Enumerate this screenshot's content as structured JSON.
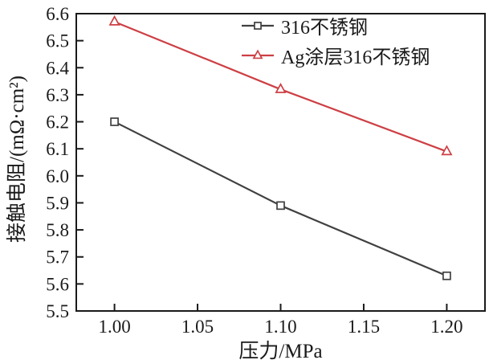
{
  "chart_data": {
    "type": "line",
    "title": "",
    "xlabel": "压力/MPa",
    "ylabel": "接触电阻/(mΩ·cm²)",
    "x": [
      1.0,
      1.1,
      1.2
    ],
    "series": [
      {
        "name": "316不锈钢",
        "marker": "square",
        "color": "#404040",
        "values": [
          6.2,
          5.89,
          5.63
        ]
      },
      {
        "name": "Ag涂层316不锈钢",
        "marker": "triangle",
        "color": "#cd3f44",
        "values": [
          6.57,
          6.32,
          6.09
        ]
      }
    ],
    "xticks": [
      "1.00",
      "1.05",
      "1.10",
      "1.15",
      "1.20"
    ],
    "yticks": [
      "5.5",
      "5.6",
      "5.7",
      "5.8",
      "5.9",
      "6.0",
      "6.1",
      "6.2",
      "6.3",
      "6.4",
      "6.5",
      "6.6"
    ],
    "xlim": [
      0.977,
      1.223
    ],
    "ylim": [
      5.5,
      6.6
    ],
    "grid": false,
    "frame": "full-box",
    "tick_direction": "in",
    "legend_position": "top-right-inside",
    "axis_color": "#1a1a1a",
    "background": "#ffffff"
  }
}
